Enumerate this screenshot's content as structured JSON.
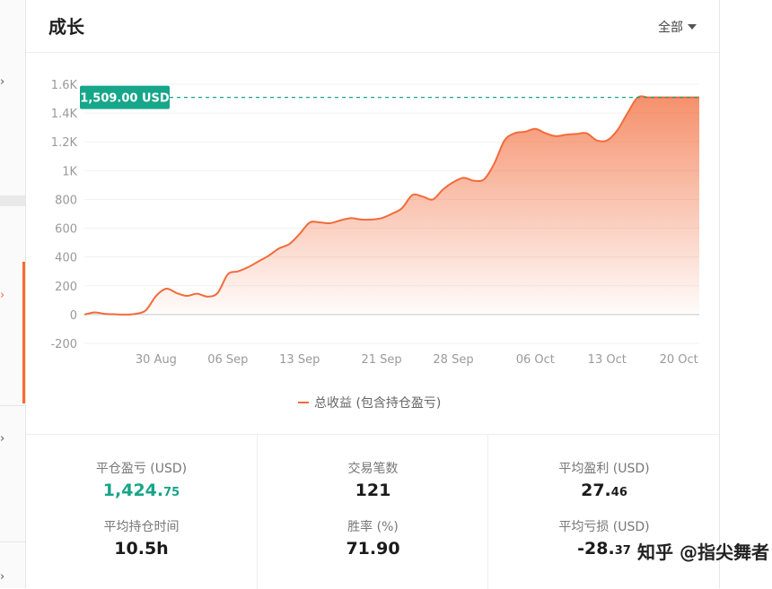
{
  "card": {
    "title": "成长",
    "dropdown_label": "全部"
  },
  "chart_data": {
    "type": "area",
    "title": "",
    "xlabel": "",
    "ylabel": "",
    "ylim": [
      -200,
      1600
    ],
    "y_ticks": [
      -200,
      0,
      200,
      400,
      600,
      800,
      1000,
      1200,
      1400,
      1600
    ],
    "y_tick_labels": [
      "-200",
      "0",
      "200",
      "400",
      "600",
      "800",
      "1K",
      "1.2K",
      "1.4K",
      "1.6K"
    ],
    "x_ticks": [
      "2023-08-30",
      "2023-09-06",
      "2023-09-13",
      "2023-09-21",
      "2023-09-28",
      "2023-10-06",
      "2023-10-13",
      "2023-10-20"
    ],
    "x_tick_labels": [
      "30 Aug",
      "06 Sep",
      "13 Sep",
      "21 Sep",
      "28 Sep",
      "06 Oct",
      "13 Oct",
      "20 Oct"
    ],
    "grid": true,
    "legend_position": "bottom",
    "series": [
      {
        "name": "总收益 (包含持仓盈亏)",
        "color": "#f26b3a",
        "x": [
          "2023-08-23",
          "2023-08-24",
          "2023-08-25",
          "2023-08-26",
          "2023-08-27",
          "2023-08-28",
          "2023-08-29",
          "2023-08-30",
          "2023-08-31",
          "2023-09-01",
          "2023-09-02",
          "2023-09-03",
          "2023-09-04",
          "2023-09-05",
          "2023-09-06",
          "2023-09-07",
          "2023-09-08",
          "2023-09-09",
          "2023-09-10",
          "2023-09-11",
          "2023-09-12",
          "2023-09-13",
          "2023-09-14",
          "2023-09-15",
          "2023-09-16",
          "2023-09-17",
          "2023-09-18",
          "2023-09-19",
          "2023-09-20",
          "2023-09-21",
          "2023-09-22",
          "2023-09-23",
          "2023-09-24",
          "2023-09-25",
          "2023-09-26",
          "2023-09-27",
          "2023-09-28",
          "2023-09-29",
          "2023-09-30",
          "2023-10-01",
          "2023-10-02",
          "2023-10-03",
          "2023-10-04",
          "2023-10-05",
          "2023-10-06",
          "2023-10-07",
          "2023-10-08",
          "2023-10-09",
          "2023-10-10",
          "2023-10-11",
          "2023-10-12",
          "2023-10-13",
          "2023-10-14",
          "2023-10-15",
          "2023-10-16",
          "2023-10-17",
          "2023-10-18",
          "2023-10-19",
          "2023-10-20",
          "2023-10-21",
          "2023-10-22"
        ],
        "values": [
          0,
          15,
          5,
          2,
          0,
          5,
          30,
          130,
          180,
          150,
          130,
          145,
          125,
          150,
          280,
          300,
          330,
          370,
          410,
          460,
          490,
          560,
          640,
          640,
          635,
          655,
          670,
          660,
          660,
          670,
          700,
          740,
          830,
          820,
          800,
          870,
          920,
          950,
          930,
          940,
          1050,
          1210,
          1260,
          1270,
          1290,
          1260,
          1240,
          1250,
          1255,
          1260,
          1210,
          1210,
          1280,
          1400,
          1509,
          1509,
          1509,
          1509,
          1509,
          1509,
          1509
        ]
      }
    ],
    "annotation": {
      "label": "1,509.00 USD",
      "value": 1509,
      "color": "#16a689"
    }
  },
  "stats": {
    "closed_pnl": {
      "label": "平仓盈亏 (USD)",
      "main": "1,424.",
      "small": "75"
    },
    "trade_count": {
      "label": "交易笔数",
      "value": "121"
    },
    "avg_profit": {
      "label": "平均盈利 (USD)",
      "main": "27.",
      "small": "46"
    },
    "avg_hold_time": {
      "label": "平均持仓时间",
      "value": "10.5h"
    },
    "win_rate": {
      "label": "胜率 (%)",
      "value": "71.90"
    },
    "avg_loss": {
      "label": "平均亏损 (USD)",
      "main": "-28.",
      "small": "37"
    }
  },
  "watermark": "知乎 @指尖舞者"
}
